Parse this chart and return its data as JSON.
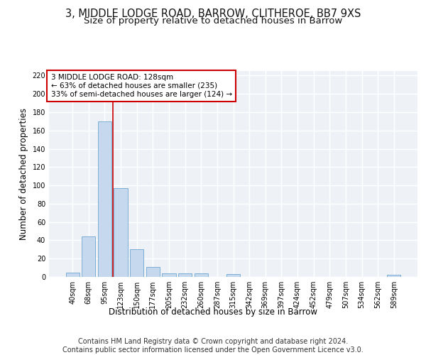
{
  "title_line1": "3, MIDDLE LODGE ROAD, BARROW, CLITHEROE, BB7 9XS",
  "title_line2": "Size of property relative to detached houses in Barrow",
  "xlabel": "Distribution of detached houses by size in Barrow",
  "ylabel": "Number of detached properties",
  "categories": [
    "40sqm",
    "68sqm",
    "95sqm",
    "123sqm",
    "150sqm",
    "177sqm",
    "205sqm",
    "232sqm",
    "260sqm",
    "287sqm",
    "315sqm",
    "342sqm",
    "369sqm",
    "397sqm",
    "424sqm",
    "452sqm",
    "479sqm",
    "507sqm",
    "534sqm",
    "562sqm",
    "589sqm"
  ],
  "values": [
    5,
    44,
    170,
    97,
    30,
    11,
    4,
    4,
    4,
    0,
    3,
    0,
    0,
    0,
    0,
    0,
    0,
    0,
    0,
    0,
    2
  ],
  "bar_color": "#c5d8ed",
  "bar_edge_color": "#7bafd4",
  "background_color": "#eef2f7",
  "grid_color": "#ffffff",
  "annotation_box_text": "3 MIDDLE LODGE ROAD: 128sqm\n← 63% of detached houses are smaller (235)\n33% of semi-detached houses are larger (124) →",
  "annotation_box_color": "#ffffff",
  "annotation_box_edgecolor": "#cc0000",
  "vline_x_index": 2.5,
  "vline_color": "#cc0000",
  "ylim": [
    0,
    225
  ],
  "yticks": [
    0,
    20,
    40,
    60,
    80,
    100,
    120,
    140,
    160,
    180,
    200,
    220
  ],
  "footer_line1": "Contains HM Land Registry data © Crown copyright and database right 2024.",
  "footer_line2": "Contains public sector information licensed under the Open Government Licence v3.0.",
  "title_fontsize": 10.5,
  "subtitle_fontsize": 9.5,
  "tick_fontsize": 7,
  "label_fontsize": 8.5,
  "footer_fontsize": 7,
  "annot_fontsize": 7.5
}
